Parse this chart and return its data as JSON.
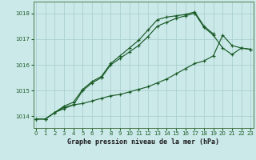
{
  "title": "Graphe pression niveau de la mer (hPa)",
  "background_color": "#cce9e9",
  "grid_color": "#aacfcf",
  "line_color": "#1a5c28",
  "x_ticks": [
    0,
    1,
    2,
    3,
    4,
    5,
    6,
    7,
    8,
    9,
    10,
    11,
    12,
    13,
    14,
    15,
    16,
    17,
    18,
    19,
    20,
    21,
    22,
    23
  ],
  "y_ticks": [
    1014,
    1015,
    1016,
    1017,
    1018
  ],
  "ylim": [
    1013.55,
    1018.45
  ],
  "xlim": [
    -0.3,
    23.3
  ],
  "series1": [
    1013.9,
    1013.9,
    1014.15,
    1014.4,
    1014.55,
    1015.05,
    1015.35,
    1015.55,
    1016.05,
    1016.35,
    1016.65,
    1016.95,
    1017.35,
    1017.75,
    1017.85,
    1017.9,
    1017.95,
    1018.05,
    1017.5,
    1017.2,
    null,
    null,
    null,
    null
  ],
  "series2": [
    1013.9,
    1013.9,
    1014.15,
    1014.35,
    1014.45,
    1014.5,
    1014.6,
    1014.7,
    1014.8,
    1014.85,
    1014.95,
    1015.05,
    1015.15,
    1015.3,
    1015.45,
    1015.65,
    1015.85,
    1016.05,
    1016.15,
    1016.35,
    1017.15,
    1016.75,
    1016.65,
    1016.6
  ],
  "series3": [
    1013.9,
    1013.9,
    1014.15,
    1014.3,
    1014.45,
    1015.0,
    1015.3,
    1015.5,
    1016.0,
    1016.25,
    1016.5,
    1016.75,
    1017.1,
    1017.5,
    1017.65,
    1017.8,
    1017.9,
    1018.0,
    1017.45,
    1017.15,
    1016.65,
    1016.4,
    1016.65,
    1016.6
  ]
}
